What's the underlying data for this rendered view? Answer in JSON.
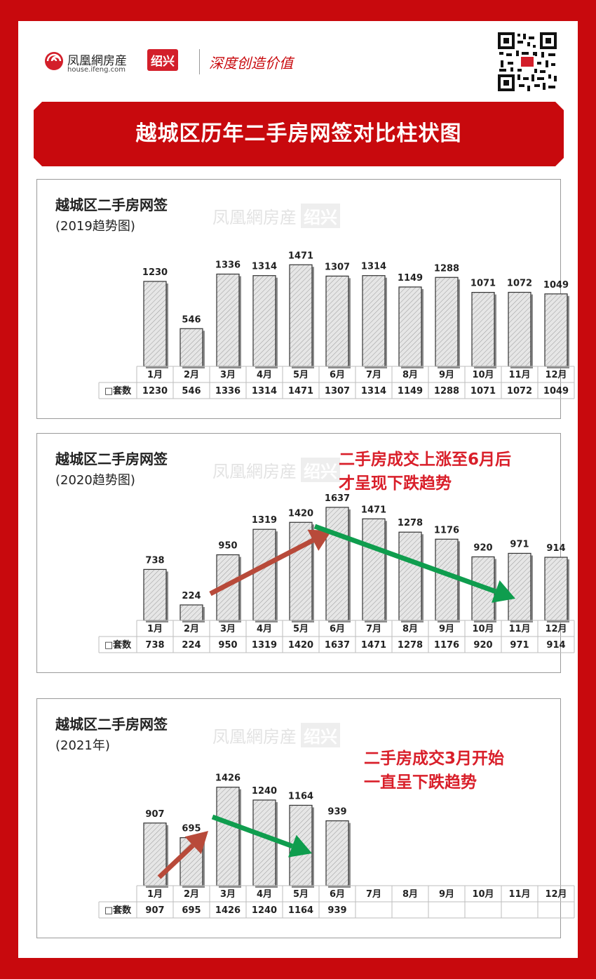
{
  "header": {
    "brand_cn": "凤凰網房産",
    "brand_url": "house.ifeng.com",
    "city": "绍兴",
    "slogan": "深度创造价值",
    "qr_icon": "qr-code-icon"
  },
  "banner": {
    "title": "越城区历年二手房网签对比柱状图"
  },
  "watermark": {
    "brand": "凤凰網房産",
    "city": "绍兴"
  },
  "colors": {
    "frame_red": "#c8090d",
    "note_red": "#d91f2a",
    "arrow_up": "#b84a3a",
    "arrow_down": "#0f9d4e",
    "bar_fill": "#e6e6e6"
  },
  "panels": [
    {
      "title": "越城区二手房网签",
      "subtitle": "(2019趋势图)",
      "note": []
    },
    {
      "title": "越城区二手房网签",
      "subtitle": "(2020趋势图)",
      "note": [
        "二手房成交上涨至6月后",
        "才呈现下跌趋势"
      ]
    },
    {
      "title": "越城区二手房网签",
      "subtitle": "(2021年)",
      "note": [
        "二手房成交3月开始",
        "一直呈下跌趋势"
      ]
    }
  ],
  "chart_data": [
    {
      "type": "bar",
      "title": "越城区二手房网签",
      "subtitle": "(2019趋势图)",
      "categories": [
        "1月",
        "2月",
        "3月",
        "4月",
        "5月",
        "6月",
        "7月",
        "8月",
        "9月",
        "10月",
        "11月",
        "12月"
      ],
      "series": [
        {
          "name": "套数",
          "values": [
            1230,
            546,
            1336,
            1314,
            1471,
            1307,
            1314,
            1149,
            1288,
            1071,
            1072,
            1049
          ]
        }
      ],
      "table_row_label": "□套数",
      "ylim": [
        0,
        1800
      ],
      "grid": false,
      "legend": "table"
    },
    {
      "type": "bar",
      "title": "越城区二手房网签",
      "subtitle": "(2020趋势图)",
      "categories": [
        "1月",
        "2月",
        "3月",
        "4月",
        "5月",
        "6月",
        "7月",
        "8月",
        "9月",
        "10月",
        "11月",
        "12月"
      ],
      "series": [
        {
          "name": "套数",
          "values": [
            738,
            224,
            950,
            1319,
            1420,
            1637,
            1471,
            1278,
            1176,
            920,
            971,
            914
          ]
        }
      ],
      "table_row_label": "□套数",
      "ylim": [
        0,
        1800
      ],
      "grid": false,
      "legend": "table",
      "annotations": [
        {
          "kind": "arrow",
          "color": "#b84a3a",
          "from": "3月",
          "to": "6月"
        },
        {
          "kind": "arrow",
          "color": "#0f9d4e",
          "from": "6月",
          "to": "12月"
        }
      ]
    },
    {
      "type": "bar",
      "title": "越城区二手房网签",
      "subtitle": "(2021年)",
      "categories": [
        "1月",
        "2月",
        "3月",
        "4月",
        "5月",
        "6月",
        "7月",
        "8月",
        "9月",
        "10月",
        "11月",
        "12月"
      ],
      "series": [
        {
          "name": "套数",
          "values": [
            907,
            695,
            1426,
            1240,
            1164,
            939,
            null,
            null,
            null,
            null,
            null,
            null
          ]
        }
      ],
      "table_row_label": "□套数",
      "ylim": [
        0,
        1800
      ],
      "grid": false,
      "legend": "table",
      "annotations": [
        {
          "kind": "arrow",
          "color": "#b84a3a",
          "from": "2月",
          "to": "3月"
        },
        {
          "kind": "arrow",
          "color": "#0f9d4e",
          "from": "4月",
          "to": "6月"
        }
      ]
    }
  ]
}
